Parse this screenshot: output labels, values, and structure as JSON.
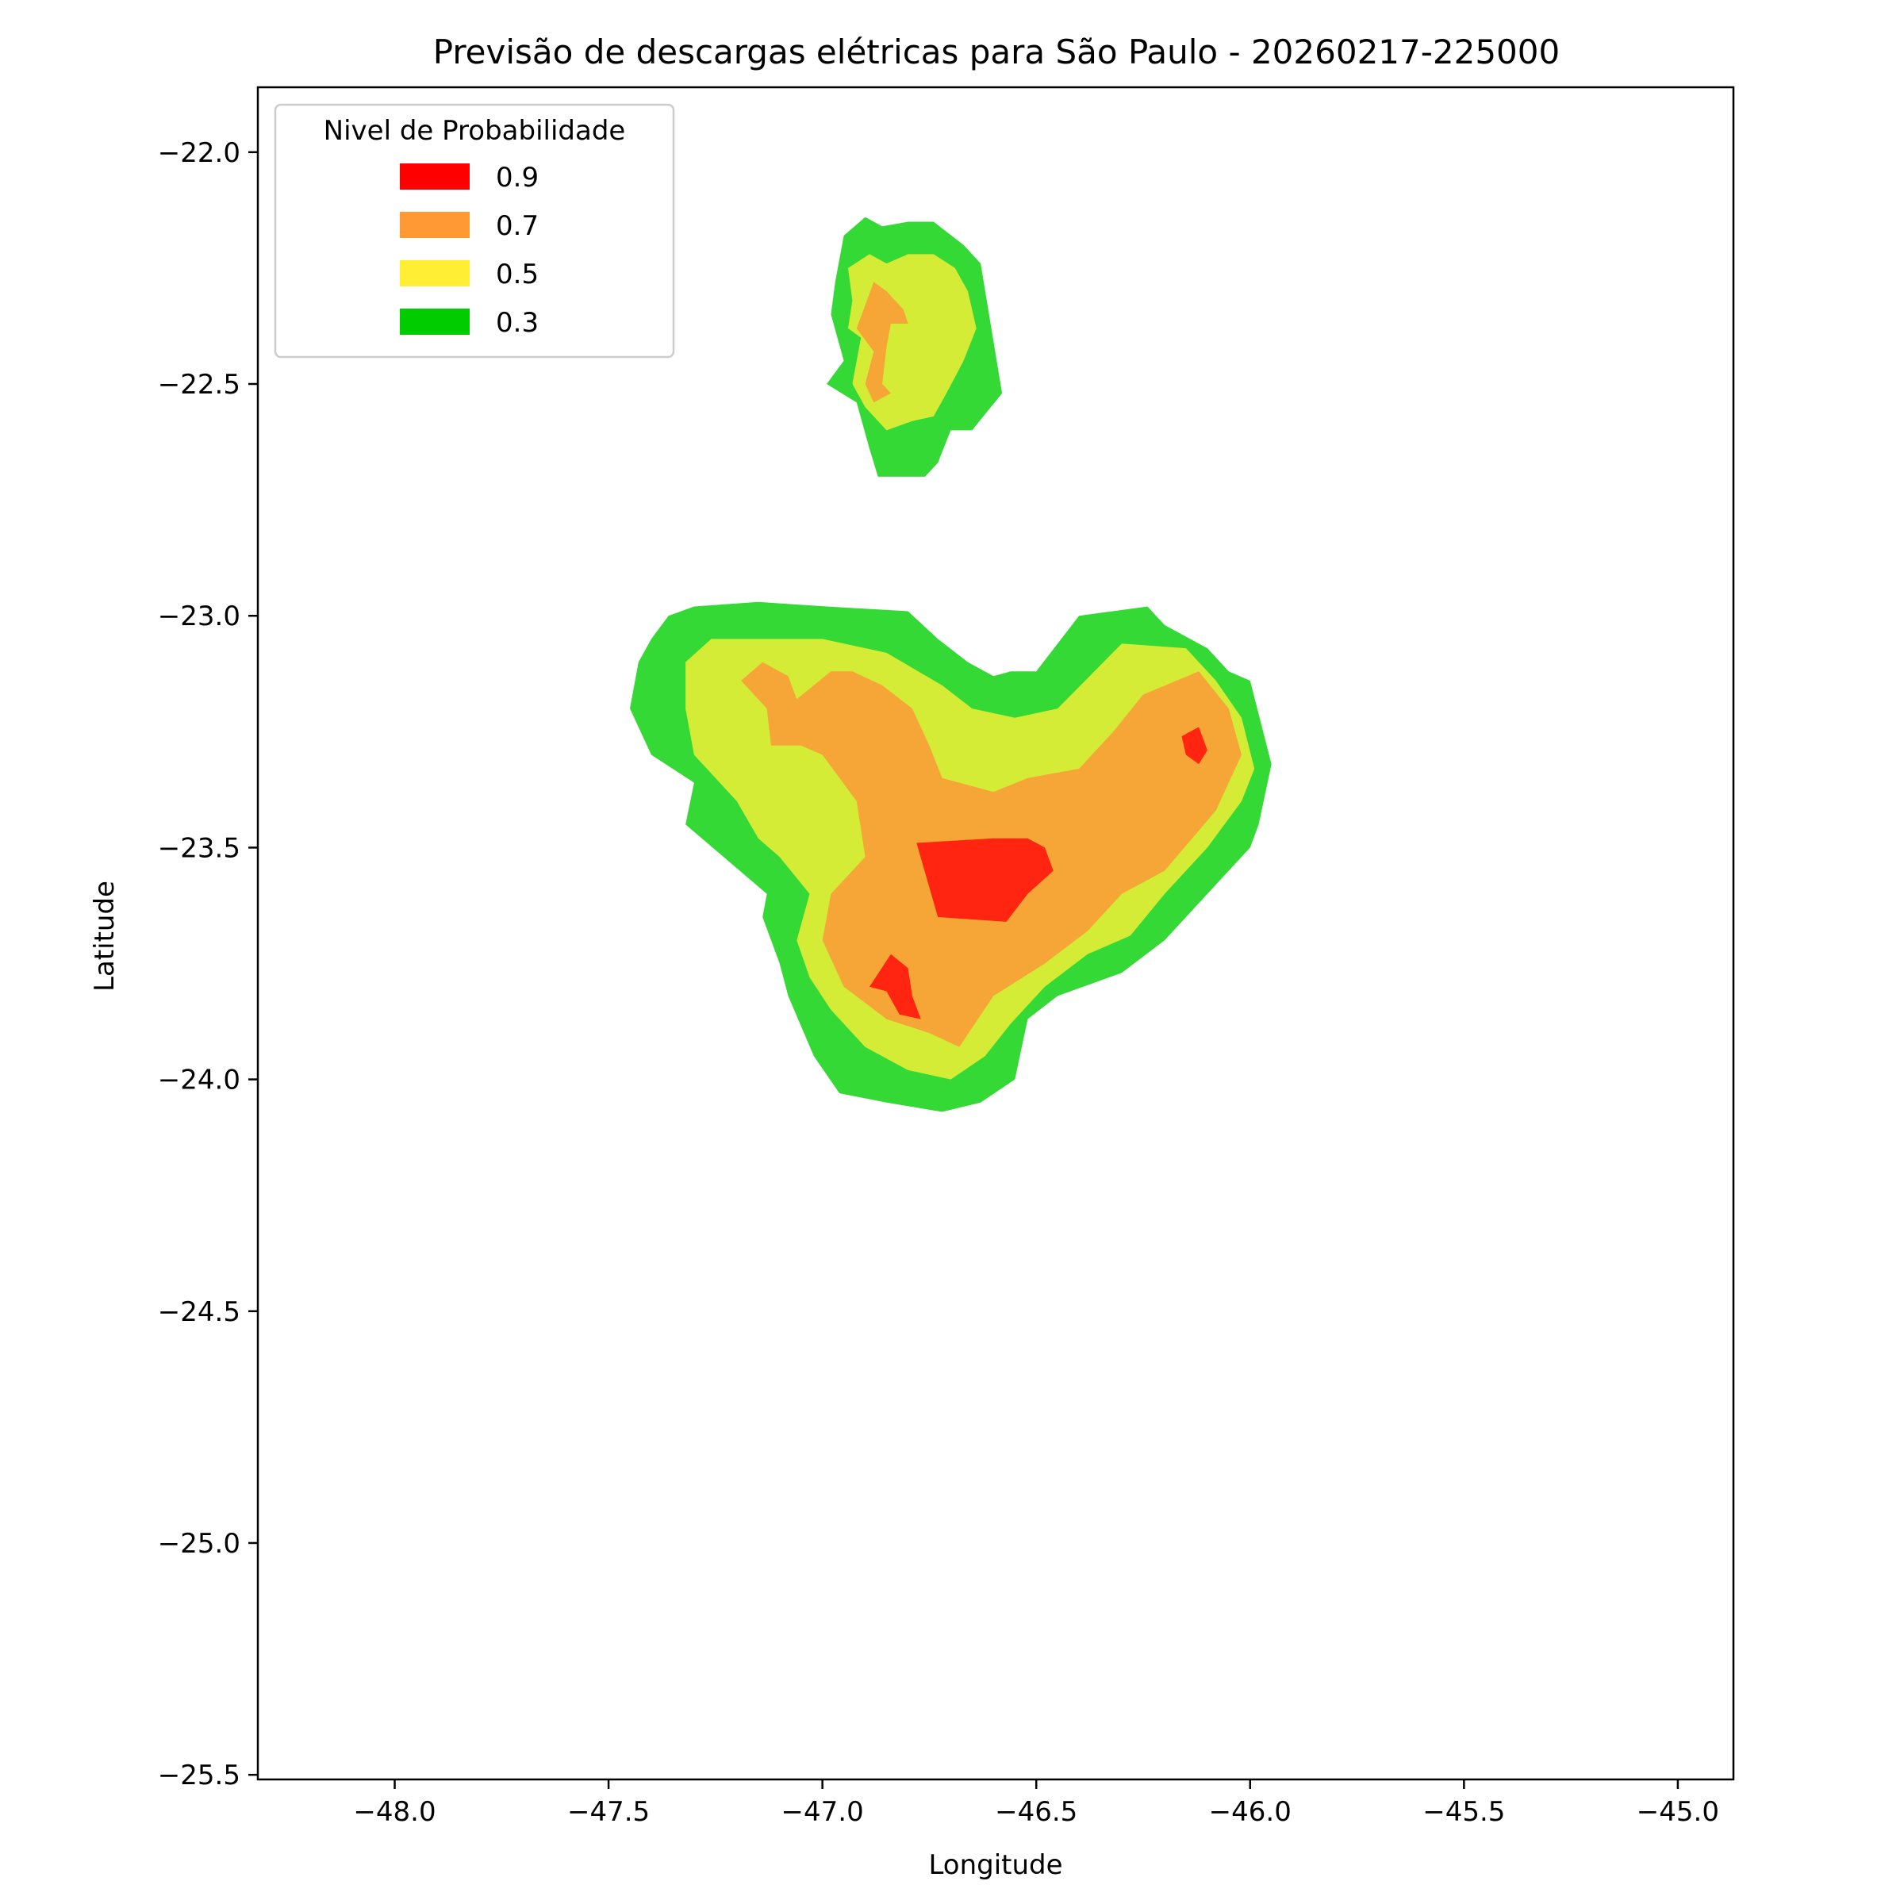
{
  "figure": {
    "title": "Previsão de descargas elétricas para São Paulo - 20260217-225000",
    "xlabel": "Longitude",
    "ylabel": "Latitude"
  },
  "legend": {
    "title": "Nivel de Probabilidade",
    "placement": "upper-left",
    "entries": [
      {
        "label": "0.9",
        "color": "#ff0000"
      },
      {
        "label": "0.7",
        "color": "#ff9933"
      },
      {
        "label": "0.5",
        "color": "#ffee33"
      },
      {
        "label": "0.3",
        "color": "#00cc00"
      }
    ]
  },
  "axes": {
    "xlim": [
      -48.32,
      -44.87
    ],
    "ylim": [
      -25.51,
      -21.86
    ],
    "xticks": [
      -48.0,
      -47.5,
      -47.0,
      -46.5,
      -46.0,
      -45.5,
      -45.0
    ],
    "xtick_labels": [
      "−48.0",
      "−47.5",
      "−47.0",
      "−46.5",
      "−46.0",
      "−45.5",
      "−45.0"
    ],
    "yticks": [
      -22.0,
      -22.5,
      -23.0,
      -23.5,
      -24.0,
      -24.5,
      -25.0,
      -25.5
    ],
    "ytick_labels": [
      "−22.0",
      "−22.5",
      "−23.0",
      "−23.5",
      "−24.0",
      "−24.5",
      "−25.0",
      "−25.5"
    ]
  },
  "region_colors": {
    "0.3": "#35d935",
    "0.5": "#d4ec36",
    "0.7": "#f5a636",
    "0.9": "#ff2510"
  },
  "chart_data": {
    "type": "contour-map",
    "regions": [
      {
        "level": "0.3",
        "polygon": [
          [
            -46.97,
            -22.28
          ],
          [
            -46.95,
            -22.18
          ],
          [
            -46.9,
            -22.14
          ],
          [
            -46.86,
            -22.16
          ],
          [
            -46.8,
            -22.15
          ],
          [
            -46.74,
            -22.15
          ],
          [
            -46.67,
            -22.2
          ],
          [
            -46.63,
            -22.24
          ],
          [
            -46.58,
            -22.52
          ],
          [
            -46.65,
            -22.6
          ],
          [
            -46.7,
            -22.6
          ],
          [
            -46.73,
            -22.67
          ],
          [
            -46.76,
            -22.7
          ],
          [
            -46.82,
            -22.7
          ],
          [
            -46.87,
            -22.7
          ],
          [
            -46.89,
            -22.64
          ],
          [
            -46.92,
            -22.54
          ],
          [
            -46.99,
            -22.5
          ],
          [
            -46.95,
            -22.45
          ],
          [
            -46.98,
            -22.35
          ]
        ]
      },
      {
        "level": "0.5",
        "polygon": [
          [
            -46.93,
            -22.32
          ],
          [
            -46.94,
            -22.25
          ],
          [
            -46.89,
            -22.22
          ],
          [
            -46.85,
            -22.24
          ],
          [
            -46.8,
            -22.22
          ],
          [
            -46.74,
            -22.22
          ],
          [
            -46.69,
            -22.25
          ],
          [
            -46.66,
            -22.3
          ],
          [
            -46.64,
            -22.38
          ],
          [
            -46.67,
            -22.45
          ],
          [
            -46.71,
            -22.52
          ],
          [
            -46.74,
            -22.57
          ],
          [
            -46.79,
            -22.58
          ],
          [
            -46.85,
            -22.6
          ],
          [
            -46.9,
            -22.55
          ],
          [
            -46.93,
            -22.5
          ],
          [
            -46.91,
            -22.4
          ],
          [
            -46.94,
            -22.38
          ]
        ]
      },
      {
        "level": "0.7",
        "polygon": [
          [
            -46.9,
            -22.33
          ],
          [
            -46.88,
            -22.28
          ],
          [
            -46.85,
            -22.3
          ],
          [
            -46.81,
            -22.34
          ],
          [
            -46.8,
            -22.37
          ],
          [
            -46.84,
            -22.37
          ],
          [
            -46.85,
            -22.42
          ],
          [
            -46.86,
            -22.5
          ],
          [
            -46.84,
            -22.52
          ],
          [
            -46.88,
            -22.54
          ],
          [
            -46.9,
            -22.5
          ],
          [
            -46.88,
            -22.43
          ],
          [
            -46.92,
            -22.38
          ]
        ]
      },
      {
        "level": "0.3",
        "polygon": [
          [
            -47.4,
            -23.05
          ],
          [
            -47.36,
            -23.0
          ],
          [
            -47.3,
            -22.98
          ],
          [
            -47.15,
            -22.97
          ],
          [
            -46.99,
            -22.98
          ],
          [
            -46.8,
            -22.99
          ],
          [
            -46.73,
            -23.05
          ],
          [
            -46.66,
            -23.1
          ],
          [
            -46.6,
            -23.13
          ],
          [
            -46.56,
            -23.12
          ],
          [
            -46.5,
            -23.12
          ],
          [
            -46.4,
            -23.0
          ],
          [
            -46.24,
            -22.98
          ],
          [
            -46.2,
            -23.02
          ],
          [
            -46.1,
            -23.07
          ],
          [
            -46.05,
            -23.12
          ],
          [
            -46.0,
            -23.14
          ],
          [
            -45.95,
            -23.32
          ],
          [
            -45.98,
            -23.45
          ],
          [
            -46.0,
            -23.5
          ],
          [
            -46.1,
            -23.6
          ],
          [
            -46.2,
            -23.7
          ],
          [
            -46.3,
            -23.77
          ],
          [
            -46.45,
            -23.82
          ],
          [
            -46.52,
            -23.87
          ],
          [
            -46.55,
            -24.0
          ],
          [
            -46.63,
            -24.05
          ],
          [
            -46.72,
            -24.07
          ],
          [
            -46.85,
            -24.05
          ],
          [
            -46.96,
            -24.03
          ],
          [
            -47.02,
            -23.95
          ],
          [
            -47.08,
            -23.82
          ],
          [
            -47.1,
            -23.75
          ],
          [
            -47.14,
            -23.65
          ],
          [
            -47.13,
            -23.6
          ],
          [
            -47.32,
            -23.45
          ],
          [
            -47.3,
            -23.36
          ],
          [
            -47.4,
            -23.3
          ],
          [
            -47.45,
            -23.2
          ],
          [
            -47.43,
            -23.1
          ]
        ]
      },
      {
        "level": "0.5",
        "polygon": [
          [
            -47.32,
            -23.1
          ],
          [
            -47.26,
            -23.05
          ],
          [
            -47.15,
            -23.05
          ],
          [
            -47.0,
            -23.05
          ],
          [
            -46.85,
            -23.08
          ],
          [
            -46.72,
            -23.15
          ],
          [
            -46.65,
            -23.2
          ],
          [
            -46.55,
            -23.22
          ],
          [
            -46.45,
            -23.2
          ],
          [
            -46.3,
            -23.06
          ],
          [
            -46.15,
            -23.07
          ],
          [
            -46.08,
            -23.14
          ],
          [
            -46.02,
            -23.22
          ],
          [
            -45.99,
            -23.33
          ],
          [
            -46.02,
            -23.4
          ],
          [
            -46.1,
            -23.5
          ],
          [
            -46.2,
            -23.6
          ],
          [
            -46.28,
            -23.69
          ],
          [
            -46.38,
            -23.73
          ],
          [
            -46.48,
            -23.8
          ],
          [
            -46.56,
            -23.88
          ],
          [
            -46.62,
            -23.95
          ],
          [
            -46.7,
            -24.0
          ],
          [
            -46.8,
            -23.98
          ],
          [
            -46.9,
            -23.93
          ],
          [
            -46.98,
            -23.85
          ],
          [
            -47.03,
            -23.78
          ],
          [
            -47.06,
            -23.7
          ],
          [
            -47.03,
            -23.6
          ],
          [
            -47.1,
            -23.52
          ],
          [
            -47.15,
            -23.48
          ],
          [
            -47.2,
            -23.4
          ],
          [
            -47.3,
            -23.3
          ],
          [
            -47.32,
            -23.2
          ]
        ]
      },
      {
        "level": "0.7",
        "polygon": [
          [
            -47.19,
            -23.14
          ],
          [
            -47.14,
            -23.1
          ],
          [
            -47.08,
            -23.13
          ],
          [
            -47.06,
            -23.18
          ],
          [
            -46.98,
            -23.12
          ],
          [
            -46.93,
            -23.12
          ],
          [
            -46.86,
            -23.15
          ],
          [
            -46.79,
            -23.2
          ],
          [
            -46.75,
            -23.28
          ],
          [
            -46.72,
            -23.35
          ],
          [
            -46.6,
            -23.38
          ],
          [
            -46.52,
            -23.35
          ],
          [
            -46.4,
            -23.33
          ],
          [
            -46.32,
            -23.25
          ],
          [
            -46.25,
            -23.17
          ],
          [
            -46.12,
            -23.12
          ],
          [
            -46.05,
            -23.2
          ],
          [
            -46.02,
            -23.3
          ],
          [
            -46.08,
            -23.42
          ],
          [
            -46.2,
            -23.55
          ],
          [
            -46.3,
            -23.6
          ],
          [
            -46.38,
            -23.68
          ],
          [
            -46.48,
            -23.75
          ],
          [
            -46.6,
            -23.82
          ],
          [
            -46.68,
            -23.93
          ],
          [
            -46.75,
            -23.9
          ],
          [
            -46.85,
            -23.87
          ],
          [
            -46.95,
            -23.8
          ],
          [
            -47.0,
            -23.7
          ],
          [
            -46.98,
            -23.6
          ],
          [
            -46.9,
            -23.52
          ],
          [
            -46.92,
            -23.4
          ],
          [
            -47.0,
            -23.3
          ],
          [
            -47.05,
            -23.28
          ],
          [
            -47.12,
            -23.28
          ],
          [
            -47.13,
            -23.2
          ]
        ]
      },
      {
        "level": "0.9",
        "polygon": [
          [
            -46.78,
            -23.49
          ],
          [
            -46.73,
            -23.65
          ],
          [
            -46.57,
            -23.66
          ],
          [
            -46.52,
            -23.6
          ],
          [
            -46.46,
            -23.55
          ],
          [
            -46.48,
            -23.5
          ],
          [
            -46.52,
            -23.48
          ],
          [
            -46.6,
            -23.48
          ]
        ]
      },
      {
        "level": "0.9",
        "polygon": [
          [
            -46.89,
            -23.8
          ],
          [
            -46.84,
            -23.73
          ],
          [
            -46.8,
            -23.76
          ],
          [
            -46.79,
            -23.82
          ],
          [
            -46.77,
            -23.87
          ],
          [
            -46.82,
            -23.86
          ],
          [
            -46.85,
            -23.81
          ]
        ]
      },
      {
        "level": "0.9",
        "polygon": [
          [
            -46.16,
            -23.26
          ],
          [
            -46.12,
            -23.24
          ],
          [
            -46.1,
            -23.29
          ],
          [
            -46.12,
            -23.32
          ],
          [
            -46.15,
            -23.3
          ]
        ]
      }
    ]
  }
}
